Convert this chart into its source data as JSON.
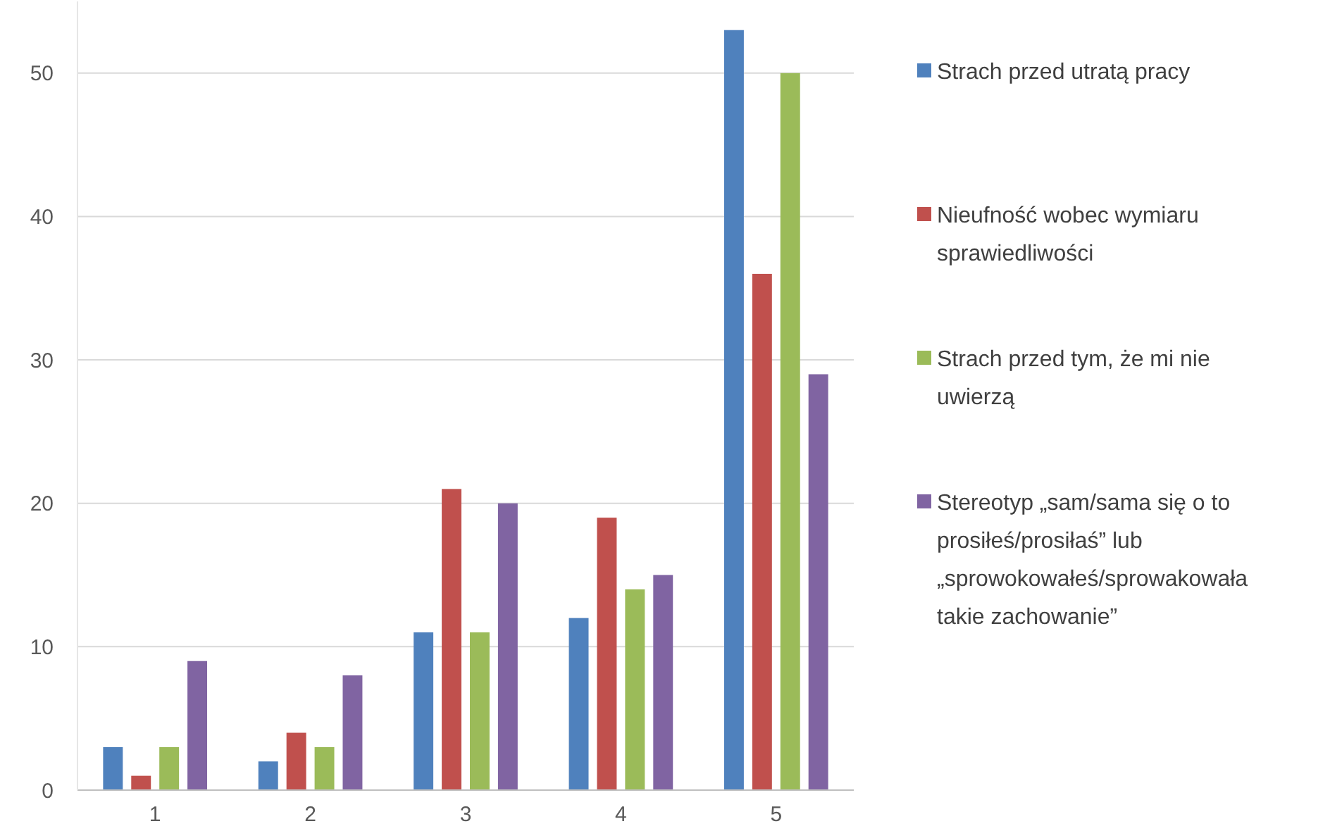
{
  "chart_data": {
    "type": "bar",
    "categories": [
      "1",
      "2",
      "3",
      "4",
      "5"
    ],
    "series": [
      {
        "name": "Strach przed utratą pracy",
        "color": "#4f81bd",
        "values": [
          3,
          2,
          11,
          12,
          53
        ]
      },
      {
        "name": "Nieufność wobec wymiaru sprawiedliwości",
        "color": "#c0504d",
        "values": [
          1,
          4,
          21,
          19,
          36
        ]
      },
      {
        "name": "Strach przed tym, że mi nie uwierzą",
        "color": "#9bbb59",
        "values": [
          3,
          3,
          11,
          14,
          50
        ]
      },
      {
        "name": "Stereotyp „sam/sama się o to prosiłeś/prosiłaś” lub „sprowokowałeś/sprowakowała takie zachowanie”",
        "color": "#8064a2",
        "values": [
          9,
          8,
          20,
          15,
          29
        ]
      }
    ],
    "ylim": [
      0,
      55
    ],
    "yticks": [
      0,
      10,
      20,
      30,
      40,
      50
    ],
    "grid": "y",
    "legend": "right"
  }
}
